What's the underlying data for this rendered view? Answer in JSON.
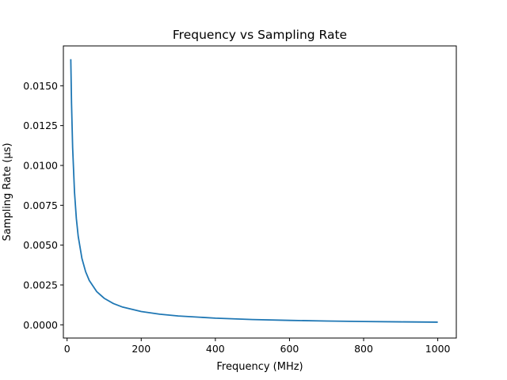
{
  "chart_data": {
    "type": "line",
    "title": "Frequency vs Sampling Rate",
    "xlabel": "Frequency (MHz)",
    "ylabel": "Sampling Rate (µs)",
    "xlim": [
      -10,
      1050
    ],
    "ylim": [
      -0.00083,
      0.0175
    ],
    "xticks": [
      0,
      200,
      400,
      600,
      800,
      1000
    ],
    "xtick_labels": [
      "0",
      "200",
      "400",
      "600",
      "800",
      "1000"
    ],
    "yticks": [
      0.0,
      0.0025,
      0.005,
      0.0075,
      0.01,
      0.0125,
      0.015
    ],
    "ytick_labels": [
      "0.0000",
      "0.0025",
      "0.0050",
      "0.0075",
      "0.0100",
      "0.0125",
      "0.0150"
    ],
    "grid": false,
    "series": [
      {
        "color": "#1f77b4",
        "x": [
          10,
          12,
          15,
          20,
          25,
          30,
          40,
          50,
          60,
          80,
          100,
          125,
          150,
          200,
          250,
          300,
          400,
          500,
          600,
          700,
          800,
          900,
          1000
        ],
        "y": [
          0.016667,
          0.013889,
          0.011111,
          0.008333,
          0.006667,
          0.005556,
          0.004167,
          0.003333,
          0.002778,
          0.002083,
          0.001667,
          0.001333,
          0.001111,
          0.000833,
          0.000667,
          0.000556,
          0.000417,
          0.000333,
          0.000278,
          0.000238,
          0.000208,
          0.000185,
          0.000167
        ]
      }
    ]
  }
}
